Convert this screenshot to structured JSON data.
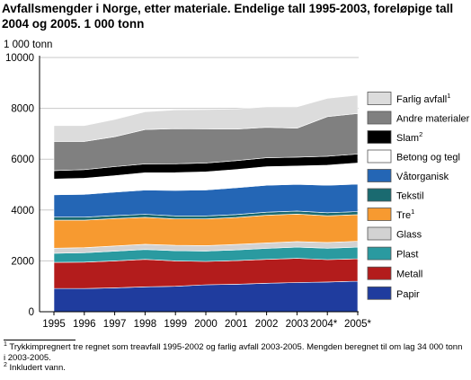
{
  "header": {
    "title": "Avfallsmengder i Norge, etter materiale. Endelige tall 1995-2003, foreløpige tall 2004 og 2005. 1 000 tonn",
    "unit": "1 000 tonn"
  },
  "chart_data": {
    "type": "area",
    "stacked": true,
    "title": "Avfallsmengder i Norge, etter materiale. Endelige tall 1995-2003, foreløpige tall 2004 og 2005. 1 000 tonn",
    "ylabel": "1 000 tonn",
    "xlabel": "",
    "categories": [
      "1995",
      "1996",
      "1997",
      "1998",
      "1999",
      "2000",
      "2001",
      "2002",
      "2003",
      "2004*",
      "2005*"
    ],
    "ylim": [
      0,
      10000
    ],
    "yticks": [
      0,
      2000,
      4000,
      6000,
      8000,
      10000
    ],
    "ytick_labels": [
      "0",
      "2000",
      "4000",
      "6000",
      "8000",
      "10000"
    ],
    "grid": "horizontal",
    "legend_position": "right",
    "series": [
      {
        "name": "Papir",
        "color": "#1f3c9e",
        "values": [
          920,
          910,
          940,
          980,
          1000,
          1060,
          1080,
          1120,
          1150,
          1170,
          1200
        ]
      },
      {
        "name": "Metall",
        "color": "#b31c1c",
        "values": [
          1020,
          1040,
          1060,
          1080,
          1000,
          920,
          930,
          940,
          950,
          880,
          880
        ]
      },
      {
        "name": "Plast",
        "color": "#2a9aa0",
        "values": [
          360,
          370,
          380,
          390,
          400,
          410,
          420,
          430,
          440,
          450,
          460
        ]
      },
      {
        "name": "Glass",
        "color": "#d2d2d2",
        "values": [
          200,
          200,
          205,
          205,
          210,
          210,
          215,
          215,
          220,
          225,
          230
        ]
      },
      {
        "name": "Tre",
        "label_sup": "1",
        "color": "#f79a30",
        "values": [
          1100,
          1080,
          1080,
          1060,
          1040,
          1050,
          1060,
          1090,
          1080,
          1050,
          1050
        ]
      },
      {
        "name": "Tekstil",
        "color": "#1a6a70",
        "values": [
          120,
          120,
          120,
          120,
          120,
          120,
          120,
          120,
          120,
          120,
          120
        ]
      },
      {
        "name": "Våtorganisk",
        "color": "#2466b5",
        "values": [
          880,
          900,
          920,
          950,
          1000,
          1020,
          1050,
          1060,
          1050,
          1080,
          1080
        ]
      },
      {
        "name": "Betong og tegl",
        "color": "#ffffff",
        "values": [
          620,
          630,
          650,
          680,
          700,
          710,
          720,
          730,
          720,
          790,
          830
        ]
      },
      {
        "name": "Slam",
        "label_sup": "2",
        "color": "#000000",
        "values": [
          330,
          340,
          350,
          350,
          350,
          350,
          350,
          350,
          350,
          350,
          350
        ]
      },
      {
        "name": "Andre materialer",
        "color": "#808080",
        "values": [
          1150,
          1110,
          1180,
          1350,
          1380,
          1340,
          1240,
          1200,
          1140,
          1560,
          1600
        ]
      },
      {
        "name": "Farlig avfall",
        "label_sup": "1",
        "color": "#dcdcdc",
        "values": [
          620,
          620,
          680,
          700,
          740,
          760,
          790,
          800,
          840,
          720,
          720
        ]
      }
    ]
  },
  "footnotes": [
    {
      "mark": "1",
      "text": "Trykkimpregnert tre regnet som treavfall 1995-2002 og farlig avfall 2003-2005. Mengden beregnet til om lag 34 000 tonn i 2003-2005."
    },
    {
      "mark": "2",
      "text": "Inkludert vann."
    }
  ]
}
